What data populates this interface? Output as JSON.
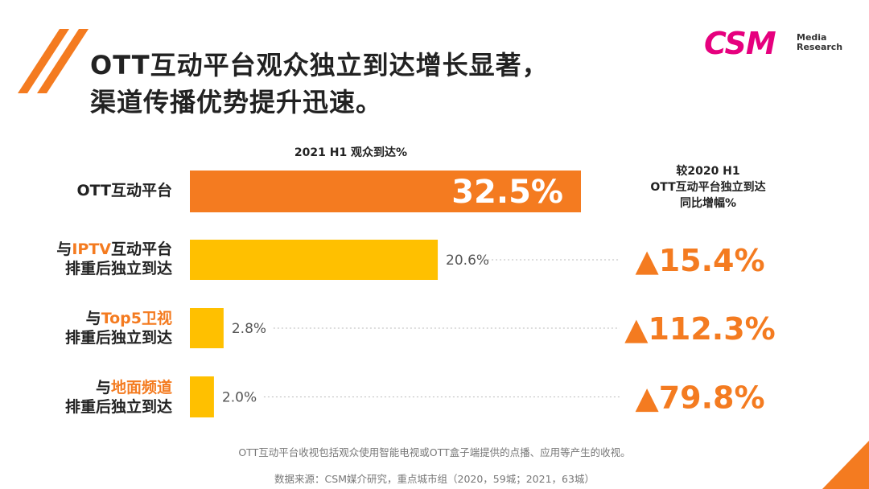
{
  "title": {
    "line1": "OTT互动平台观众独立到达增长显著，",
    "line2": "渠道传播优势提升迅速。"
  },
  "logo": {
    "main": "CSM",
    "sub1": "Media",
    "sub2": "Research"
  },
  "chart_data": {
    "type": "bar",
    "orientation": "horizontal",
    "title": "2021 H1 观众到达%",
    "categories": [
      "OTT互动平台",
      "与IPTV互动平台排重后独立到达",
      "与Top5卫视排重后独立到达",
      "与地面频道排重后独立到达"
    ],
    "category_labels": [
      {
        "line1_prefix": "",
        "line1_highlight": "",
        "line1_suffix": "OTT互动平台",
        "line2": ""
      },
      {
        "line1_prefix": "与",
        "line1_highlight": "IPTV",
        "line1_suffix": "互动平台",
        "line2": "排重后独立到达"
      },
      {
        "line1_prefix": "与",
        "line1_highlight": "Top5卫视",
        "line1_suffix": "",
        "line2": "排重后独立到达"
      },
      {
        "line1_prefix": "与",
        "line1_highlight": "地面频道",
        "line1_suffix": "",
        "line2": "排重后独立到达"
      }
    ],
    "values": [
      32.5,
      20.6,
      2.8,
      2.0
    ],
    "value_labels": [
      "32.5%",
      "20.6%",
      "2.8%",
      "2.0%"
    ],
    "colors": [
      "#f47b20",
      "#ffc000",
      "#ffc000",
      "#ffc000"
    ],
    "xlim": [
      0,
      32.5
    ],
    "growth_header": [
      "较2020 H1",
      "OTT互动平台独立到达",
      "同比增幅%"
    ],
    "growth_values": [
      "",
      "▲15.4%",
      "▲112.3%",
      "▲79.8%"
    ],
    "growth_color": "#f47b20"
  },
  "notes": {
    "definition": "OTT互动平台收视包括观众使用智能电视或OTT盒子端提供的点播、应用等产生的收视。",
    "source": "数据来源：CSM媒介研究，重点城市组（2020，59城；2021，63城）"
  },
  "colors": {
    "accent": "#f47b20",
    "bar": "#ffc000",
    "brand": "#e6007e"
  }
}
